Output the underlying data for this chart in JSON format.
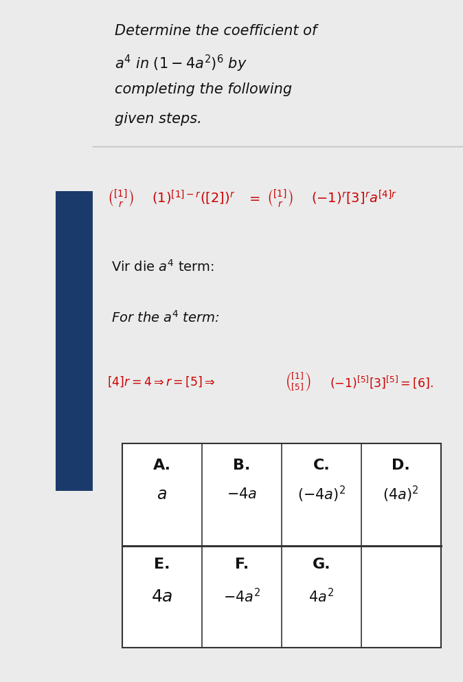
{
  "title_lines": [
    "Determine the coefficient of",
    "a⁴ in (1 – 4a²)⁶ by",
    "completing the following",
    "given steps."
  ],
  "bg_color": "#ebebeb",
  "content_bg": "#ffffff",
  "red_color": "#cc0000",
  "text_color": "#111111",
  "sidebar_color": "#1a3a6b",
  "title_fontsize": 15,
  "body_fontsize": 14,
  "table_header_fontsize": 16,
  "table_content_fontsize": 15,
  "table_headers1": [
    "A.",
    "B.",
    "C.",
    "D."
  ],
  "table_row1": [
    "$a$",
    "$-4a$",
    "$(-4a)^2$",
    "$(4a)^2$"
  ],
  "table_headers2": [
    "E.",
    "F.",
    "G."
  ],
  "table_row2": [
    "$4a$",
    "$-4a^2$",
    "$4a^2$"
  ]
}
